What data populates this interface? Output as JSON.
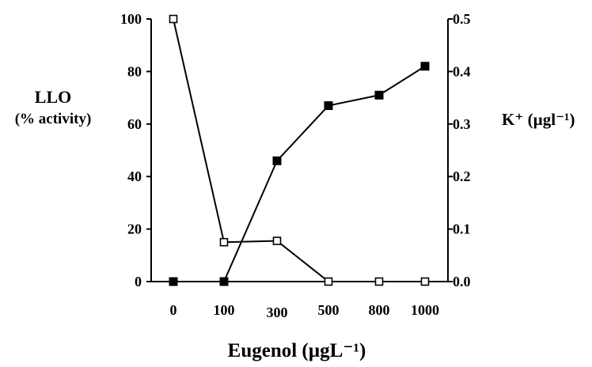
{
  "chart_data": {
    "type": "line",
    "xlabel": "Eugenol (µgL⁻¹)",
    "x_ticks": [
      "0",
      "100",
      "300",
      "500",
      "800",
      "1000"
    ],
    "left_axis": {
      "label_line1": "LLO",
      "label_line2": "(% activity)",
      "ylim": [
        0,
        100
      ],
      "ticks": [
        "0",
        "20",
        "40",
        "60",
        "80",
        "100"
      ]
    },
    "right_axis": {
      "label": "K⁺ (µgl⁻¹)",
      "ylim": [
        0,
        0.5
      ],
      "ticks": [
        "0.0",
        "0.1",
        "0.2",
        "0.3",
        "0.4",
        "0.5"
      ]
    },
    "series": [
      {
        "marker": "open-square",
        "axis": "left",
        "x": [
          "0",
          "100",
          "300",
          "500",
          "800",
          "1000"
        ],
        "values": [
          100,
          15,
          15.5,
          0,
          0,
          0
        ]
      },
      {
        "marker": "filled-square",
        "axis": "right",
        "x": [
          "0",
          "100",
          "300",
          "500",
          "800",
          "1000"
        ],
        "values": [
          0,
          0,
          0.23,
          0.335,
          0.355,
          0.41
        ]
      }
    ],
    "grid": false,
    "legend": "none"
  }
}
